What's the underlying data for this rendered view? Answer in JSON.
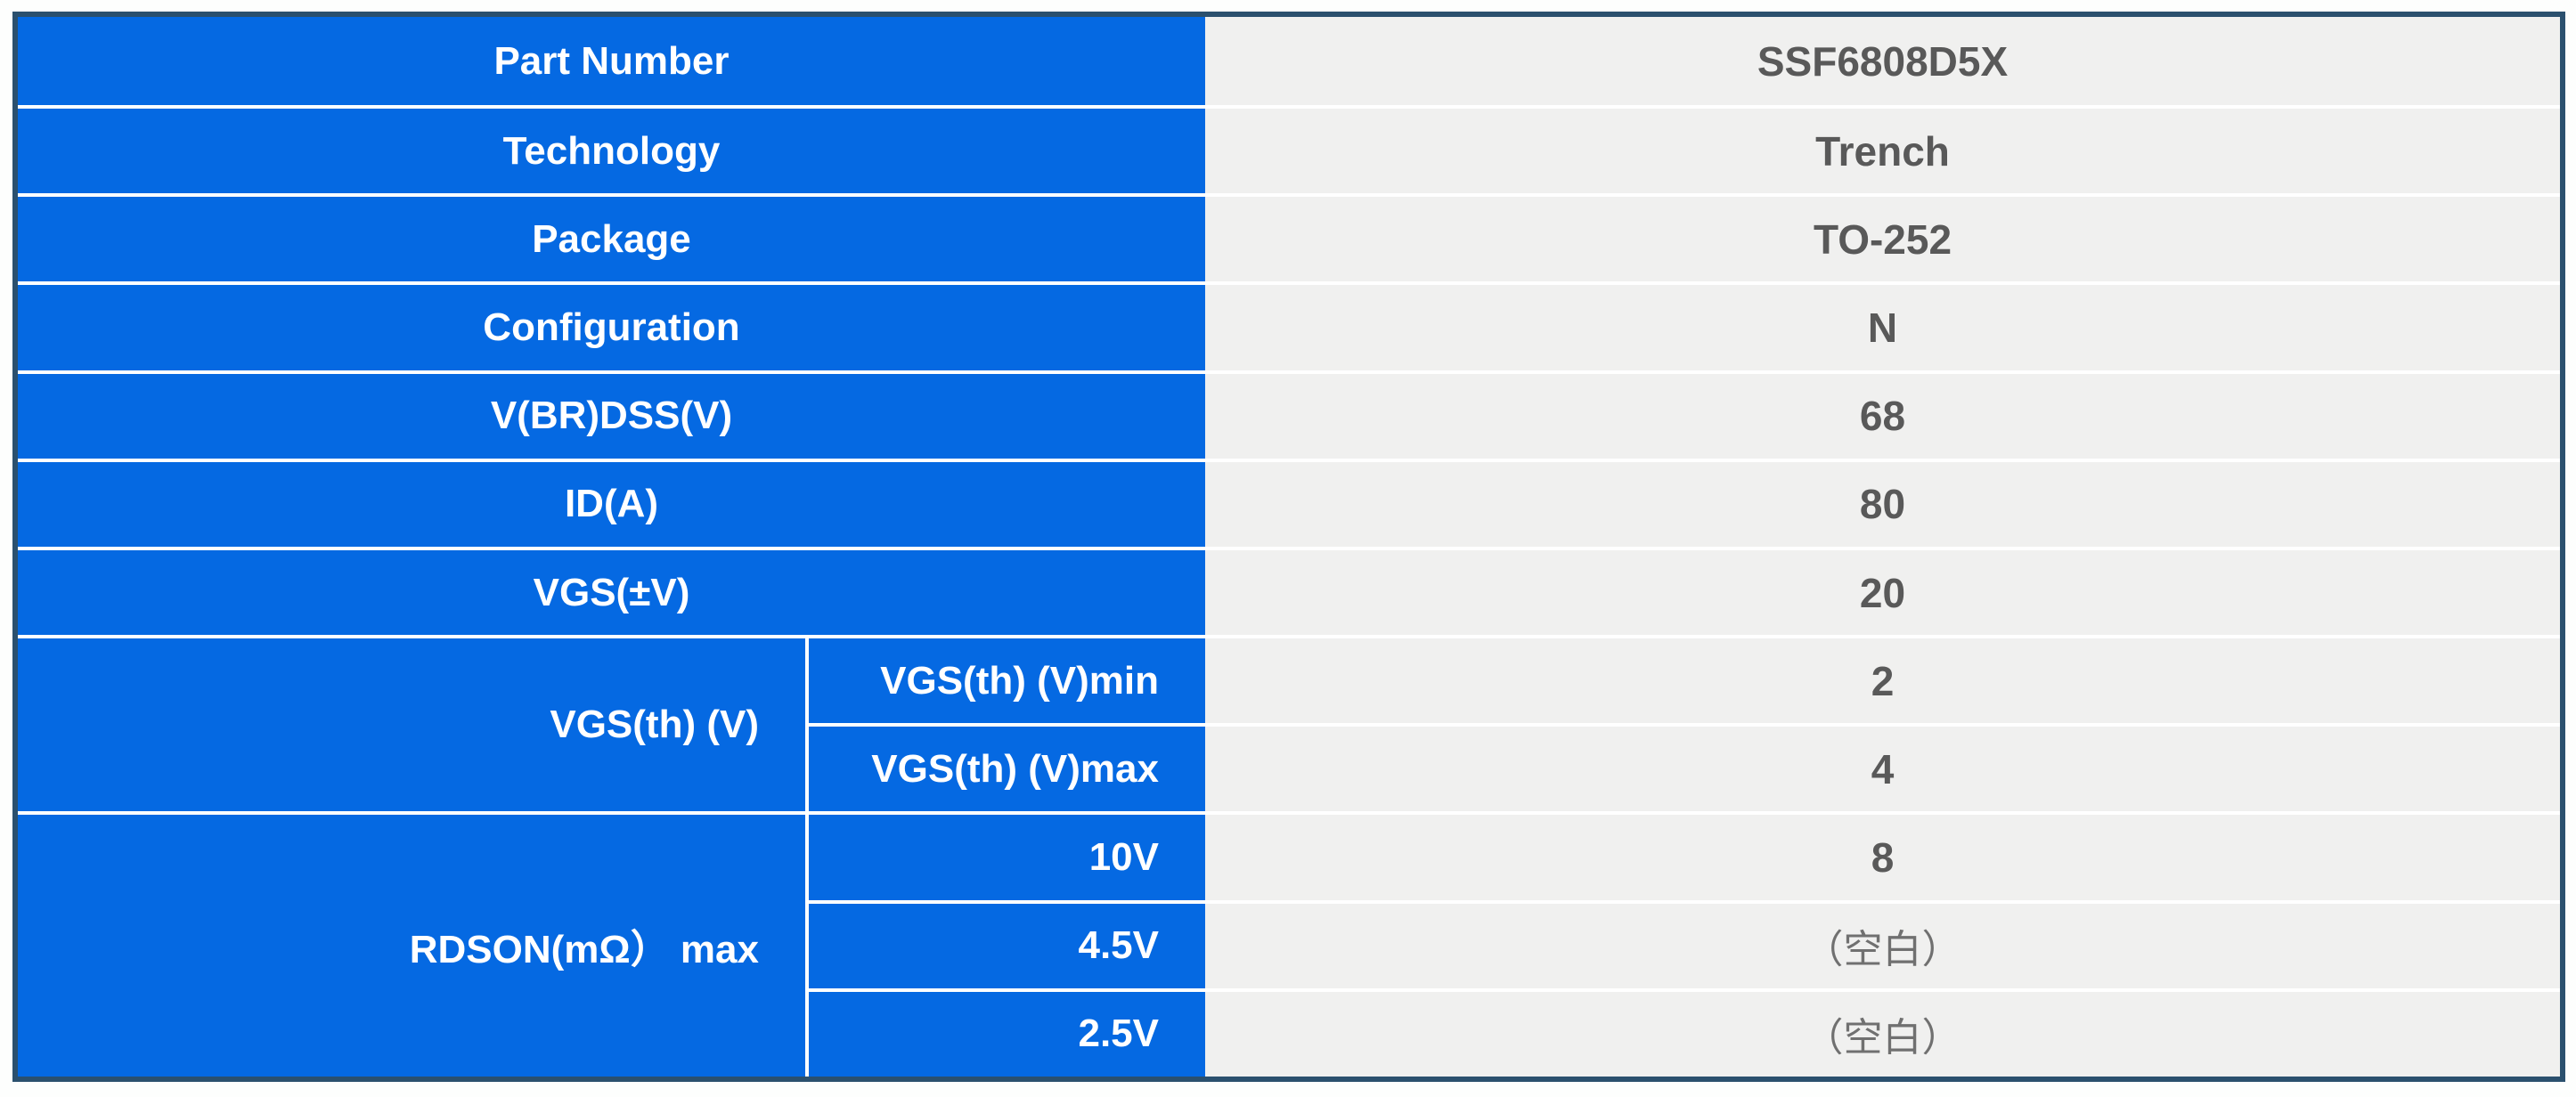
{
  "chart_data": {
    "type": "table",
    "columns": [
      "Field",
      "Subfield",
      "Value"
    ],
    "rows": [
      [
        "Part Number",
        "",
        "SSF6808D5X"
      ],
      [
        "Technology",
        "",
        "Trench"
      ],
      [
        "Package",
        "",
        "TO-252"
      ],
      [
        "Configuration",
        "",
        "N"
      ],
      [
        "V(BR)DSS(V)",
        "",
        "68"
      ],
      [
        "ID(A)",
        "",
        "80"
      ],
      [
        "VGS(±V)",
        "",
        "20"
      ],
      [
        "VGS(th) (V)",
        "VGS(th) (V)min",
        "2"
      ],
      [
        "VGS(th) (V)",
        "VGS(th) (V)max",
        "4"
      ],
      [
        "RDSON(mΩ） max",
        "10V",
        "8"
      ],
      [
        "RDSON(mΩ） max",
        "4.5V",
        "（空白）"
      ],
      [
        "RDSON(mΩ） max",
        "2.5V",
        "（空白）"
      ]
    ]
  },
  "table": {
    "simple_rows": [
      {
        "label": "Part Number",
        "value": "SSF6808D5X"
      },
      {
        "label": "Technology",
        "value": "Trench"
      },
      {
        "label": "Package",
        "value": "TO-252"
      },
      {
        "label": "Configuration",
        "value": "N"
      },
      {
        "label": "V(BR)DSS(V)",
        "value": "68"
      },
      {
        "label": "ID(A)",
        "value": "80"
      },
      {
        "label": "VGS(±V)",
        "value": "20"
      }
    ],
    "groups": [
      {
        "label": "VGS(th) (V)",
        "rows": [
          {
            "sub": "VGS(th) (V)min",
            "value": "2"
          },
          {
            "sub": "VGS(th) (V)max",
            "value": "4"
          }
        ]
      },
      {
        "label": "RDSON(mΩ） max",
        "rows": [
          {
            "sub": "10V",
            "value": "8"
          },
          {
            "sub": "4.5V",
            "value": "（空白）"
          },
          {
            "sub": "2.5V",
            "value": "（空白）"
          }
        ]
      }
    ],
    "colors": {
      "label_bg": "#0569e2",
      "label_text": "#ffffff",
      "value_bg": "#f0f0ef",
      "value_text": "#595959",
      "blank_text": "#707070",
      "grid_line": "#ffffff",
      "outer_border": "#2b506e"
    }
  }
}
